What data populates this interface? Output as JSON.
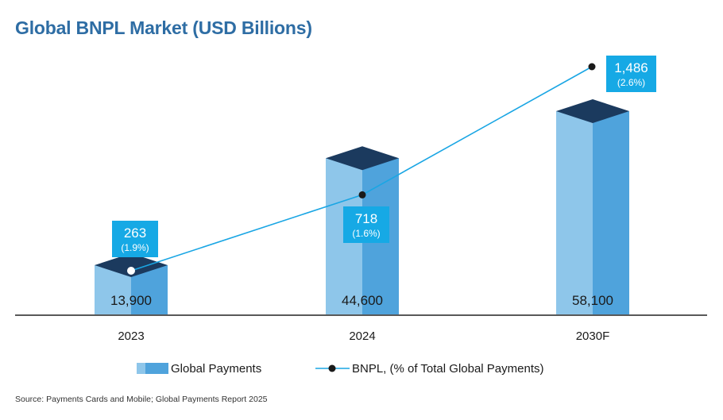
{
  "title": "Global BNPL Market (USD Billions)",
  "source": "Source: Payments Cards and Mobile; Global Payments Report 2025",
  "legend": {
    "bar_label": "Global Payments",
    "line_label": "BNPL, (% of Total Global Payments)"
  },
  "colors": {
    "title": "#2e6da4",
    "bar_front": "#8ec6ea",
    "bar_side": "#4fa3dc",
    "bar_top": "#1b3a5e",
    "line": "#1aa6e4",
    "callout_bg": "#16a9e5"
  },
  "chart_data": {
    "type": "bar",
    "title": "Global BNPL Market (USD Billions)",
    "categories": [
      "2023",
      "2024",
      "2030F"
    ],
    "series": [
      {
        "name": "Global Payments",
        "values": [
          13900,
          44600,
          58100
        ],
        "labels": [
          "13,900",
          "44,600",
          "58,100"
        ]
      },
      {
        "name": "BNPL, (% of Total Global Payments)",
        "type": "line",
        "values": [
          263,
          718,
          1486
        ],
        "labels": [
          "263",
          "718",
          "1,486"
        ],
        "percent_labels": [
          "(1.9%)",
          "(1.6%)",
          "(2.6%)"
        ]
      }
    ],
    "xlabel": "",
    "ylabel": "",
    "legend_position": "bottom",
    "grid": false
  }
}
